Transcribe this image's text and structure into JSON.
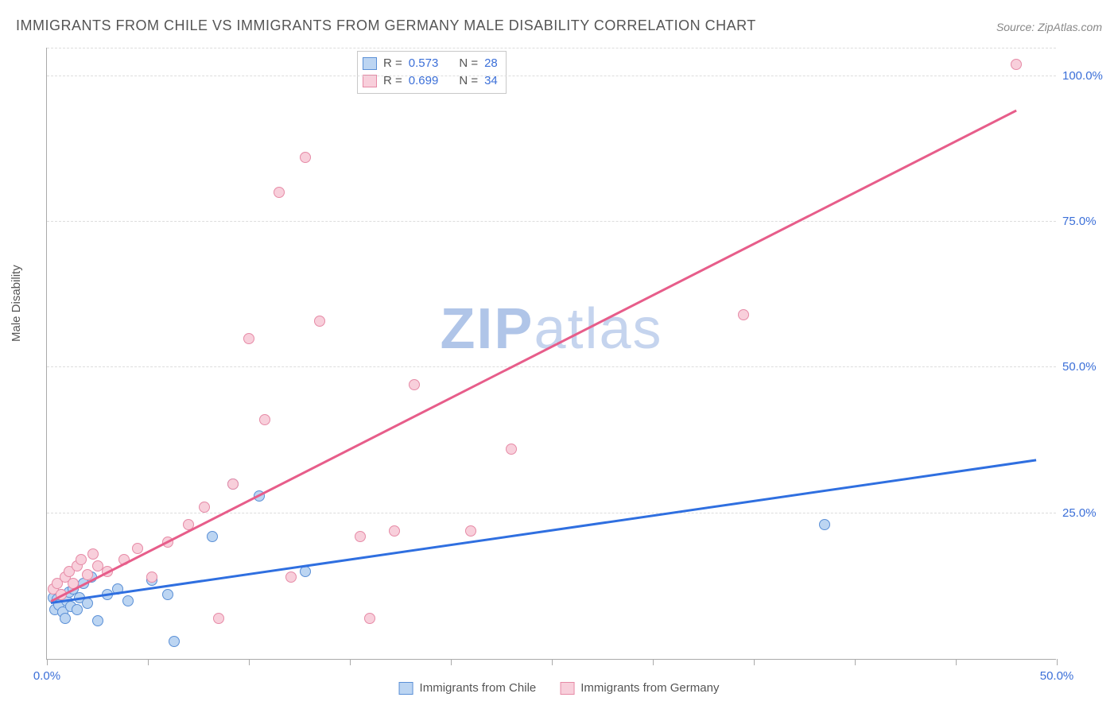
{
  "title": "IMMIGRANTS FROM CHILE VS IMMIGRANTS FROM GERMANY MALE DISABILITY CORRELATION CHART",
  "source": "Source: ZipAtlas.com",
  "y_axis_label": "Male Disability",
  "watermark_prefix": "ZIP",
  "watermark_suffix": "atlas",
  "chart": {
    "type": "scatter",
    "xlim": [
      0,
      50
    ],
    "ylim": [
      0,
      105
    ],
    "x_ticks": [
      0,
      5,
      10,
      15,
      20,
      25,
      30,
      35,
      40,
      45,
      50
    ],
    "x_tick_labels": {
      "0": "0.0%",
      "50": "50.0%"
    },
    "y_ticks": [
      25,
      50,
      75,
      100
    ],
    "y_tick_labels": {
      "25": "25.0%",
      "50": "50.0%",
      "75": "75.0%",
      "100": "100.0%"
    },
    "background_color": "#ffffff",
    "grid_color": "#dddddd",
    "axis_color": "#aaaaaa",
    "label_color": "#3b6fd8",
    "marker_radius": 7,
    "series": [
      {
        "name": "Immigrants from Chile",
        "fill": "#bcd5f2",
        "stroke": "#5a8fd6",
        "trend_stroke": "#2f6fe0",
        "r": 0.573,
        "n": 28,
        "trend": {
          "x1": 0.2,
          "y1": 9.5,
          "x2": 49,
          "y2": 34
        },
        "points": [
          [
            0.3,
            10.5
          ],
          [
            0.4,
            8.5
          ],
          [
            0.5,
            10.2
          ],
          [
            0.6,
            9.3
          ],
          [
            0.7,
            11
          ],
          [
            0.8,
            8
          ],
          [
            0.9,
            7
          ],
          [
            1.0,
            10
          ],
          [
            1.1,
            11.5
          ],
          [
            1.2,
            9
          ],
          [
            1.3,
            12
          ],
          [
            1.5,
            8.5
          ],
          [
            1.6,
            10.5
          ],
          [
            1.8,
            13
          ],
          [
            2.0,
            9.5
          ],
          [
            2.2,
            14
          ],
          [
            2.5,
            6.5
          ],
          [
            3.0,
            11
          ],
          [
            3.5,
            12
          ],
          [
            4.0,
            10
          ],
          [
            5.2,
            13.5
          ],
          [
            6.0,
            11
          ],
          [
            6.3,
            3
          ],
          [
            8.2,
            21
          ],
          [
            9.2,
            30
          ],
          [
            10.5,
            28
          ],
          [
            12.8,
            15
          ],
          [
            38.5,
            23
          ]
        ]
      },
      {
        "name": "Immigrants from Germany",
        "fill": "#f8cfdb",
        "stroke": "#e68aa6",
        "trend_stroke": "#e75d8a",
        "r": 0.699,
        "n": 34,
        "trend": {
          "x1": 0.2,
          "y1": 9.8,
          "x2": 48,
          "y2": 94
        },
        "points": [
          [
            0.3,
            12
          ],
          [
            0.5,
            13
          ],
          [
            0.7,
            11
          ],
          [
            0.9,
            14
          ],
          [
            1.1,
            15
          ],
          [
            1.3,
            13
          ],
          [
            1.5,
            16
          ],
          [
            1.7,
            17
          ],
          [
            2.0,
            14.5
          ],
          [
            2.3,
            18
          ],
          [
            2.5,
            16
          ],
          [
            3.0,
            15
          ],
          [
            3.8,
            17
          ],
          [
            4.5,
            19
          ],
          [
            5.2,
            14
          ],
          [
            6.0,
            20
          ],
          [
            7.0,
            23
          ],
          [
            7.8,
            26
          ],
          [
            8.5,
            7
          ],
          [
            9.2,
            30
          ],
          [
            10.0,
            55
          ],
          [
            10.8,
            41
          ],
          [
            11.5,
            80
          ],
          [
            12.1,
            14
          ],
          [
            12.8,
            86
          ],
          [
            13.5,
            58
          ],
          [
            15.5,
            21
          ],
          [
            16.0,
            7
          ],
          [
            17.2,
            22
          ],
          [
            18.2,
            47
          ],
          [
            21.0,
            22
          ],
          [
            23.0,
            36
          ],
          [
            34.5,
            59
          ],
          [
            48.0,
            102
          ]
        ]
      }
    ]
  },
  "stats_legend": {
    "r_label": "R =",
    "n_label": "N ="
  },
  "bottom_legend": {
    "series1": "Immigrants from Chile",
    "series2": "Immigrants from Germany"
  }
}
